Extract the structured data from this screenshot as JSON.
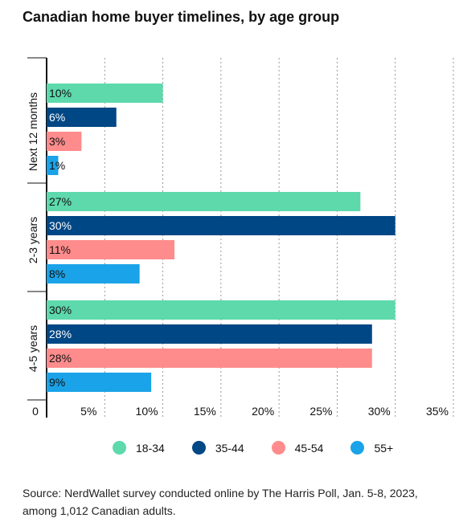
{
  "chart_data": {
    "type": "bar",
    "orientation": "horizontal",
    "title": "Canadian home buyer timelines, by age group",
    "categories": [
      "Next 12 months",
      "2-3 years",
      "4-5 years"
    ],
    "series": [
      {
        "name": "18-34",
        "color": "#5dd9ac",
        "values": [
          10,
          27,
          30
        ],
        "labels": [
          "10%",
          "27%",
          "30%"
        ],
        "label_color": "#111111"
      },
      {
        "name": "35-44",
        "color": "#004785",
        "values": [
          6,
          30,
          28
        ],
        "labels": [
          "6%",
          "30%",
          "28%"
        ],
        "label_color": "#ffffff"
      },
      {
        "name": "45-54",
        "color": "#ff8c8c",
        "values": [
          3,
          11,
          28
        ],
        "labels": [
          "3%",
          "11%",
          "28%"
        ],
        "label_color": "#111111"
      },
      {
        "name": "55+",
        "color": "#1aa3e8",
        "values": [
          1,
          8,
          9
        ],
        "labels": [
          "1%",
          "8%",
          "9%"
        ],
        "label_color": "#111111"
      }
    ],
    "xlim": [
      0,
      35
    ],
    "xticks": [
      0,
      5,
      10,
      15,
      20,
      25,
      30,
      35
    ],
    "xtick_labels": [
      "0",
      "5%",
      "10%",
      "15%",
      "20%",
      "25%",
      "30%",
      "35%"
    ],
    "grid": "vertical dashed",
    "legend_position": "bottom"
  },
  "source": "Source: NerdWallet survey conducted online by The Harris Poll, Jan. 5-8, 2023, among 1,012 Canadian adults."
}
